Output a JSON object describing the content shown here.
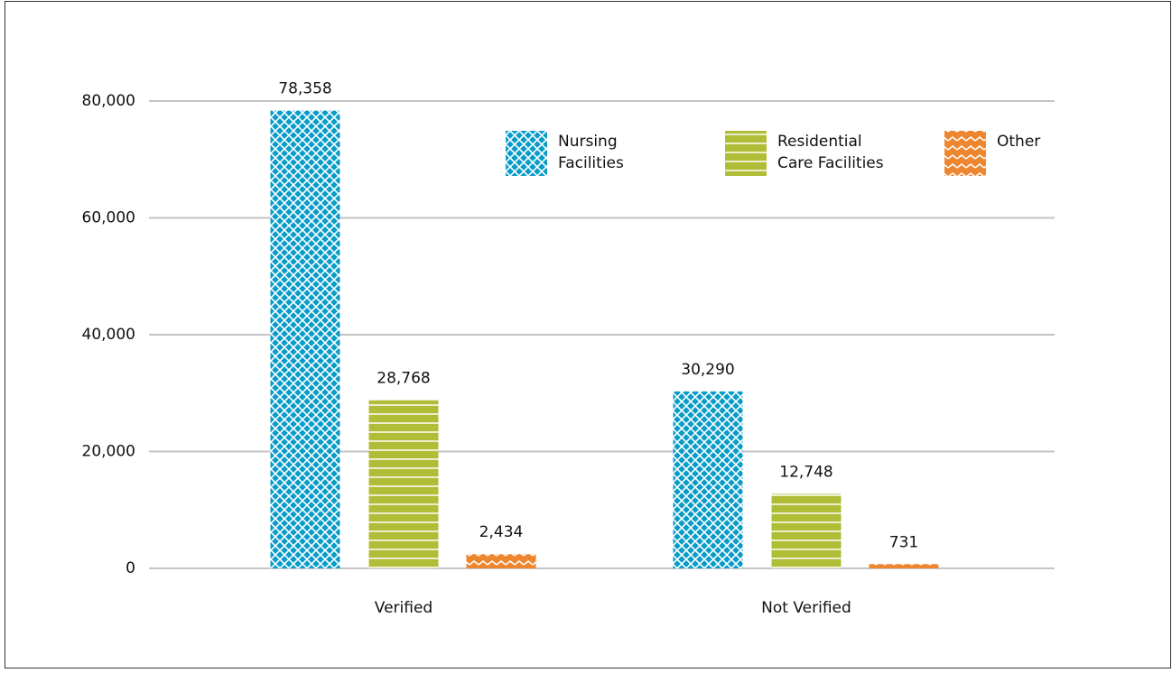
{
  "chart_data": {
    "type": "bar",
    "categories": [
      "Verified",
      "Not Verified"
    ],
    "series": [
      {
        "name": "Nursing Facilities",
        "color": "#0a9cc8",
        "values": [
          78358,
          30290
        ],
        "value_labels": [
          "78,358",
          "30,290"
        ]
      },
      {
        "name": "Residential Care Facilities",
        "color": "#b0bd37",
        "values": [
          28768,
          12748
        ],
        "value_labels": [
          "28,768",
          "12,748"
        ]
      },
      {
        "name": "Other",
        "color": "#ee8630",
        "values": [
          2434,
          731
        ],
        "value_labels": [
          "2,434",
          "731"
        ]
      }
    ],
    "ylim": [
      0,
      80000
    ],
    "yticks": [
      0,
      {
        "value": 20000,
        "label": "20,000"
      },
      {
        "value": 40000,
        "label": "40,000"
      },
      {
        "value": 60000,
        "label": "60,000"
      },
      {
        "value": 80000,
        "label": "80,000"
      }
    ],
    "grid": true
  }
}
